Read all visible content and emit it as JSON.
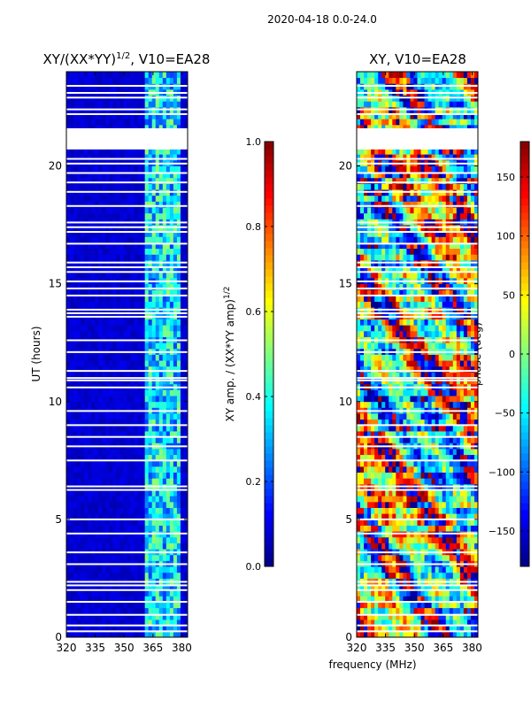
{
  "figure": {
    "suptitle": "2020-04-18 0.0-24.0",
    "shared_xlabel": "frequency (MHz)"
  },
  "colors": {
    "jet_stops": [
      "#000080",
      "#0000ff",
      "#0080ff",
      "#00ffff",
      "#80ff80",
      "#ffff00",
      "#ff8000",
      "#ff0000",
      "#800000"
    ]
  },
  "chart_data": [
    {
      "type": "heatmap",
      "title_main": "XY/(XX*YY)",
      "title_sup": "1/2",
      "title_tail": ", V10=EA28",
      "ylabel": "UT (hours)",
      "xlim": [
        320,
        383
      ],
      "ylim": [
        0,
        24
      ],
      "xticks": [
        320,
        335,
        350,
        365,
        380
      ],
      "yticks": [
        0,
        5,
        10,
        15,
        20
      ],
      "colorbar": {
        "label_main": "XY amp. / (XX*YY amp)",
        "label_sup": "1/2",
        "min": 0.0,
        "max": 1.0,
        "ticks": [
          "0.0",
          "0.2",
          "0.4",
          "0.6",
          "0.8",
          "1.0"
        ],
        "tick_values": [
          0,
          0.2,
          0.4,
          0.6,
          0.8,
          1.0
        ]
      },
      "description_values": {
        "background_level": 0.05,
        "active_band_mhz": [
          360,
          380
        ],
        "active_band_level": 0.35
      }
    },
    {
      "type": "heatmap",
      "title": "XY, V10=EA28",
      "xlim": [
        320,
        383
      ],
      "ylim": [
        0,
        24
      ],
      "xticks": [
        320,
        335,
        350,
        365,
        380
      ],
      "yticks": [
        0,
        5,
        10,
        15,
        20
      ],
      "colorbar": {
        "label": "phase (deg)",
        "min": -180,
        "max": 180,
        "ticks": [
          "150",
          "100",
          "50",
          "0",
          "−50",
          "−100",
          "−150"
        ],
        "tick_values": [
          150,
          100,
          50,
          0,
          -50,
          -100,
          -150
        ]
      }
    }
  ],
  "flagged_ut_hours": [
    0.25,
    0.5,
    0.95,
    1.5,
    2.0,
    2.2,
    2.35,
    3.1,
    3.6,
    4.4,
    5.0,
    6.25,
    6.4,
    7.5,
    8.1,
    8.5,
    9.0,
    9.6,
    10.6,
    10.9,
    11.0,
    11.3,
    12.1,
    12.6,
    13.6,
    13.75,
    13.9,
    14.5,
    14.8,
    15.1,
    15.5,
    15.7,
    15.9,
    16.7,
    17.2,
    17.4,
    17.6,
    18.3,
    18.9,
    19.3,
    19.7,
    20.1,
    20.3,
    22.2,
    22.4,
    22.9,
    23.1,
    23.4
  ]
}
